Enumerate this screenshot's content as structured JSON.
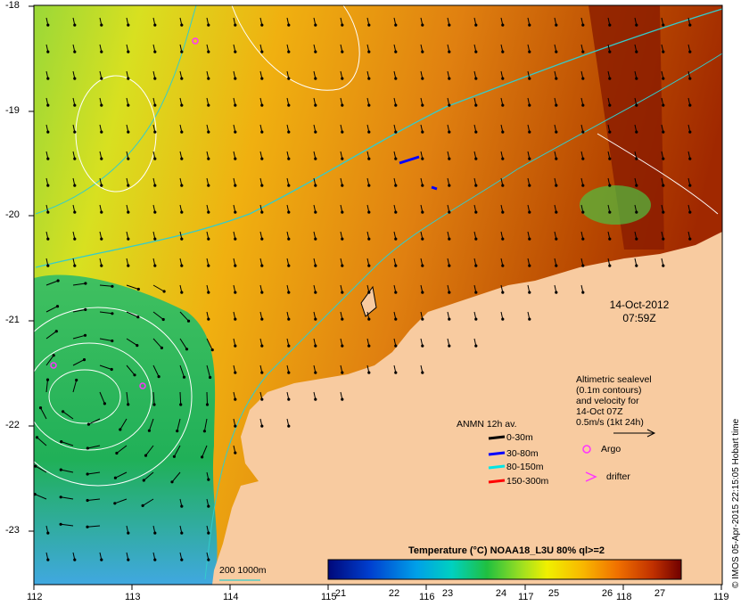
{
  "map": {
    "lon_ticks": [
      "112",
      "113",
      "114",
      "115",
      "116",
      "117",
      "118",
      "119"
    ],
    "lat_ticks": [
      "-18",
      "-19",
      "-20",
      "-21",
      "-22",
      "-23"
    ],
    "colors": {
      "land": "#f8cba0",
      "warm": "#c85a00",
      "contour": "#ffffff",
      "isobath": "#33cccc",
      "argo": "#ff33ff"
    },
    "date": "14-Oct-2012",
    "time": "07:59Z",
    "altimetry_note": [
      "Altimetric sealevel",
      "(0.1m contours)",
      "and velocity for",
      "14-Oct 07Z",
      "0.5m/s (1kt 24h)"
    ],
    "bathy_label": "200  1000m",
    "anmn_title": "ANMN 12h av.",
    "anmn_items": [
      {
        "label": "0-30m",
        "color": "#000000"
      },
      {
        "label": "30-80m",
        "color": "#0000ff"
      },
      {
        "label": "80-150m",
        "color": "#00e5e5"
      },
      {
        "label": "150-300m",
        "color": "#ff0000"
      }
    ],
    "argo_label": "Argo",
    "drifter_label": "drifter",
    "colorbar": {
      "title": "Temperature (°C) NOAA18_L3U 80% ql>=2",
      "labels": [
        "21",
        "22",
        "23",
        "24",
        "25",
        "26",
        "27"
      ],
      "colors": [
        "#00087a",
        "#0040d0",
        "#00a0e8",
        "#00d8c8",
        "#20c040",
        "#90e020",
        "#f0f000",
        "#f8c000",
        "#f08000",
        "#d04000",
        "#a00000",
        "#700000"
      ]
    },
    "credit": "© IMOS 05-Apr-2015 22:15:05 Hobart time"
  }
}
